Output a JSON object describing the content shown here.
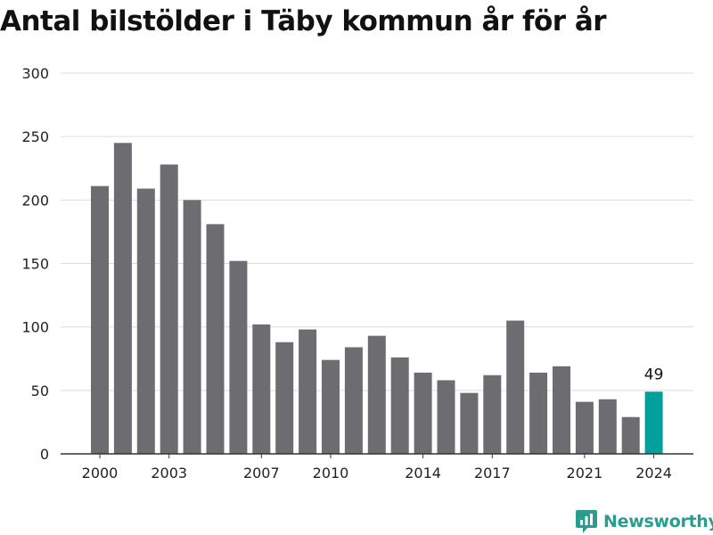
{
  "title": "Antal bilstölder i Täby kommun år för år",
  "brand": {
    "name": "Newsworthy",
    "icon": "newsworthy-logo-icon",
    "color": "#2a9d8f"
  },
  "colors": {
    "bar": "#6d6c71",
    "highlight": "#00a19a",
    "grid": "#dcdcdc",
    "axis": "#333333"
  },
  "chart_data": {
    "type": "bar",
    "title": "Antal bilstölder i Täby kommun år för år",
    "xlabel": "",
    "ylabel": "",
    "ylim": [
      0,
      300
    ],
    "yticks": [
      0,
      50,
      100,
      150,
      200,
      250,
      300
    ],
    "grid": true,
    "categories": [
      2000,
      2001,
      2002,
      2003,
      2004,
      2005,
      2006,
      2007,
      2008,
      2009,
      2010,
      2011,
      2012,
      2013,
      2014,
      2015,
      2016,
      2017,
      2018,
      2019,
      2020,
      2021,
      2022,
      2023,
      2024
    ],
    "values": [
      211,
      245,
      209,
      228,
      200,
      181,
      152,
      102,
      88,
      98,
      74,
      84,
      93,
      76,
      64,
      58,
      48,
      62,
      105,
      64,
      69,
      41,
      43,
      29,
      49
    ],
    "xtick_labels": [
      "2000",
      "2003",
      "2007",
      "2010",
      "2014",
      "2017",
      "2021",
      "2024"
    ],
    "highlight": {
      "category": 2024,
      "label": "49"
    }
  }
}
